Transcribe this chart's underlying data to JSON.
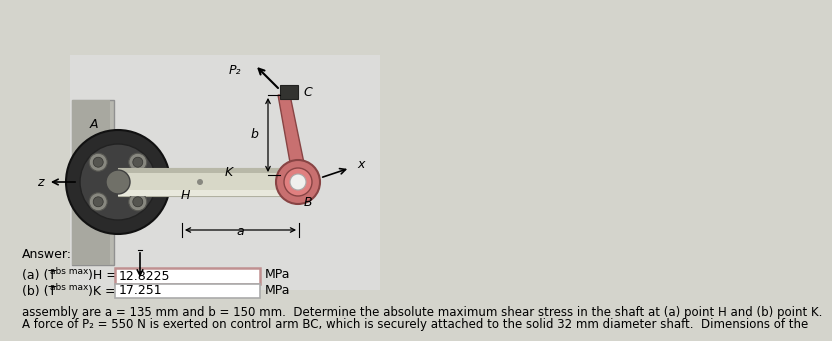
{
  "title_line1": "A force of P₂ = 550 N is exerted on control arm BC, which is securely attached to the solid 32 mm diameter shaft.  Dimensions of the",
  "title_line2": "assembly are a = 135 mm and b = 150 mm.  Determine the absolute maximum shear stress in the shaft at (a) point H and (b) point K.",
  "answer_label": "Answer:",
  "part_a_label": "(a) (T",
  "part_a_sub": "abs max",
  "part_a_end": ")H =",
  "part_a_value": "12.8225",
  "part_b_label": "(b) (T",
  "part_b_sub": "abs max",
  "part_b_end": ")K =",
  "part_b_value": "17.251",
  "unit": "MPa",
  "bg_color": "#d8d8d0",
  "title_fontsize": 8.5,
  "answer_fontsize": 9,
  "label_fontsize": 9
}
